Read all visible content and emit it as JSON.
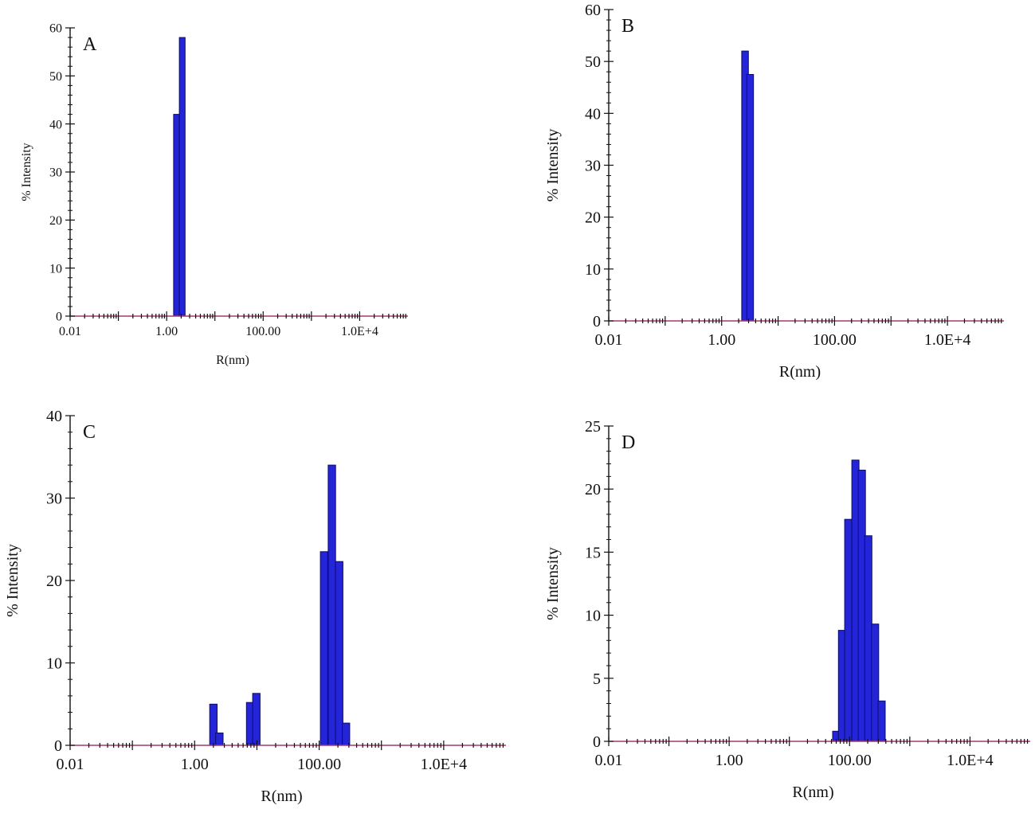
{
  "figure": {
    "bar_fill": "#2424d8",
    "bar_edge": "#0d0d66",
    "baseline_color": "#a23b6a",
    "axis_color": "#111111"
  },
  "chart_data": [
    {
      "panel_label": "A",
      "type": "bar",
      "xscale": "log",
      "xlim": [
        0.01,
        100000
      ],
      "ylim": [
        0,
        60
      ],
      "yticks": [
        0,
        10,
        20,
        30,
        40,
        50,
        60
      ],
      "xticks": [
        0.01,
        1,
        100,
        10000
      ],
      "xtick_labels": [
        "0.01",
        "1.00",
        "100.00",
        "1.0E+4"
      ],
      "xlabel": "R(nm)",
      "ylabel": "% Intensity",
      "grid": false,
      "bars": [
        {
          "x": 1.6,
          "value": 42
        },
        {
          "x": 2.1,
          "value": 58
        }
      ]
    },
    {
      "panel_label": "B",
      "type": "bar",
      "xscale": "log",
      "xlim": [
        0.01,
        100000
      ],
      "ylim": [
        0,
        60
      ],
      "yticks": [
        0,
        10,
        20,
        30,
        40,
        50,
        60
      ],
      "xticks": [
        0.01,
        1,
        100,
        10000
      ],
      "xtick_labels": [
        "0.01",
        "1.00",
        "100.00",
        "1.0E+4"
      ],
      "xlabel": "R(nm)",
      "ylabel": "% Intensity",
      "grid": false,
      "bars": [
        {
          "x": 2.6,
          "value": 52
        },
        {
          "x": 3.2,
          "value": 47.5
        }
      ]
    },
    {
      "panel_label": "C",
      "type": "bar",
      "xscale": "log",
      "xlim": [
        0.01,
        100000
      ],
      "ylim": [
        0,
        40
      ],
      "yticks": [
        0,
        10,
        20,
        30,
        40
      ],
      "xticks": [
        0.01,
        1,
        100,
        10000
      ],
      "xtick_labels": [
        "0.01",
        "1.00",
        "100.00",
        "1.0E+4"
      ],
      "xlabel": "R(nm)",
      "ylabel": "% Intensity",
      "grid": false,
      "bars": [
        {
          "x": 2.0,
          "value": 5
        },
        {
          "x": 2.5,
          "value": 1.5
        },
        {
          "x": 7.8,
          "value": 5.2
        },
        {
          "x": 9.8,
          "value": 6.3
        },
        {
          "x": 120,
          "value": 23.5
        },
        {
          "x": 160,
          "value": 34
        },
        {
          "x": 210,
          "value": 22.3
        },
        {
          "x": 270,
          "value": 2.7
        }
      ]
    },
    {
      "panel_label": "D",
      "type": "bar",
      "xscale": "log",
      "xlim": [
        0.01,
        100000
      ],
      "ylim": [
        0,
        25
      ],
      "yticks": [
        0,
        5,
        10,
        15,
        20,
        25
      ],
      "xticks": [
        0.01,
        1,
        100,
        10000
      ],
      "xtick_labels": [
        "0.01",
        "1.00",
        "100.00",
        "1.0E+4"
      ],
      "xlabel": "R(nm)",
      "ylabel": "% Intensity",
      "grid": false,
      "bars": [
        {
          "x": 60,
          "value": 0.8
        },
        {
          "x": 75,
          "value": 8.8
        },
        {
          "x": 95,
          "value": 17.6
        },
        {
          "x": 125,
          "value": 22.3
        },
        {
          "x": 160,
          "value": 21.5
        },
        {
          "x": 205,
          "value": 16.3
        },
        {
          "x": 265,
          "value": 9.3
        },
        {
          "x": 340,
          "value": 3.2
        }
      ]
    }
  ]
}
